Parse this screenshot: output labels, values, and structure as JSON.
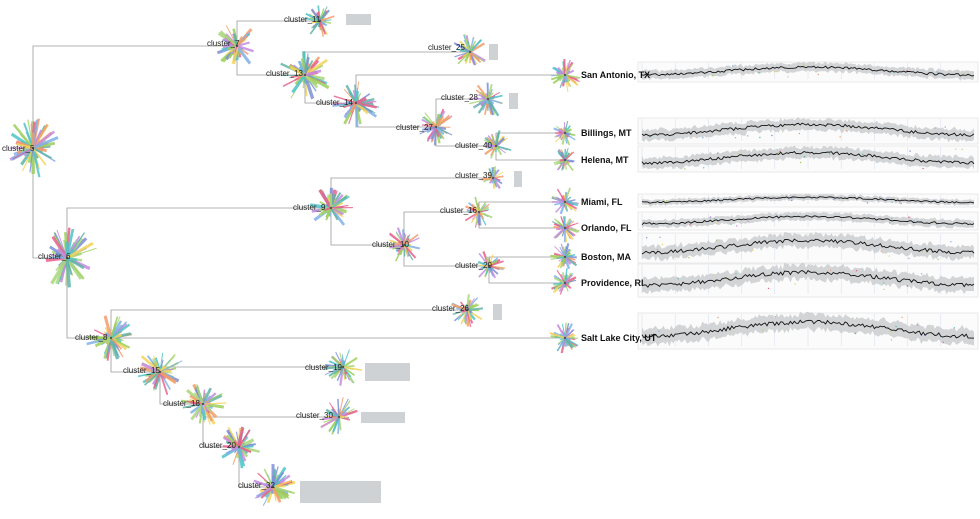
{
  "diagram": {
    "type": "dendrogram",
    "clusters": [
      {
        "id": "cluster_5",
        "label": "cluster_5"
      },
      {
        "id": "cluster_6",
        "label": "cluster_6"
      },
      {
        "id": "cluster_7",
        "label": "cluster_7"
      },
      {
        "id": "cluster_8",
        "label": "cluster_8"
      },
      {
        "id": "cluster_9",
        "label": "cluster_9"
      },
      {
        "id": "cluster_10",
        "label": "cluster_10"
      },
      {
        "id": "cluster_11",
        "label": "cluster_11"
      },
      {
        "id": "cluster_13",
        "label": "cluster_13"
      },
      {
        "id": "cluster_14",
        "label": "cluster_14"
      },
      {
        "id": "cluster_15",
        "label": "cluster_15"
      },
      {
        "id": "cluster_16",
        "label": "cluster_16"
      },
      {
        "id": "cluster_18",
        "label": "cluster_18"
      },
      {
        "id": "cluster_19",
        "label": "cluster_19"
      },
      {
        "id": "cluster_20",
        "label": "cluster_20"
      },
      {
        "id": "cluster_25",
        "label": "cluster_25"
      },
      {
        "id": "cluster_26",
        "label": "cluster_26"
      },
      {
        "id": "cluster_27",
        "label": "cluster_27"
      },
      {
        "id": "cluster_28",
        "label": "cluster_28"
      },
      {
        "id": "cluster_29",
        "label": "cluster_29"
      },
      {
        "id": "cluster_30",
        "label": "cluster_30"
      },
      {
        "id": "cluster_32",
        "label": "cluster_32"
      },
      {
        "id": "cluster_39",
        "label": "cluster_39"
      },
      {
        "id": "cluster_40",
        "label": "cluster_40"
      }
    ],
    "leaves": [
      {
        "id": "san_antonio",
        "label": "San Antonio, TX"
      },
      {
        "id": "billings",
        "label": "Billings, MT"
      },
      {
        "id": "helena",
        "label": "Helena, MT"
      },
      {
        "id": "miami",
        "label": "Miami, FL"
      },
      {
        "id": "orlando",
        "label": "Orlando, FL"
      },
      {
        "id": "boston",
        "label": "Boston, MA"
      },
      {
        "id": "providence",
        "label": "Providence, RI"
      },
      {
        "id": "salt_lake_city",
        "label": "Salt Lake City, UT"
      }
    ],
    "edges": [
      [
        "cluster_5",
        "cluster_7"
      ],
      [
        "cluster_5",
        "cluster_6"
      ],
      [
        "cluster_7",
        "cluster_11"
      ],
      [
        "cluster_7",
        "cluster_13"
      ],
      [
        "cluster_13",
        "cluster_25"
      ],
      [
        "cluster_13",
        "cluster_14"
      ],
      [
        "cluster_14",
        "san_antonio"
      ],
      [
        "cluster_14",
        "cluster_27"
      ],
      [
        "cluster_27",
        "cluster_28"
      ],
      [
        "cluster_27",
        "cluster_40"
      ],
      [
        "cluster_40",
        "billings"
      ],
      [
        "cluster_40",
        "helena"
      ],
      [
        "cluster_6",
        "cluster_9"
      ],
      [
        "cluster_6",
        "cluster_8"
      ],
      [
        "cluster_9",
        "cluster_39"
      ],
      [
        "cluster_9",
        "cluster_10"
      ],
      [
        "cluster_10",
        "cluster_16"
      ],
      [
        "cluster_10",
        "cluster_29"
      ],
      [
        "cluster_16",
        "miami"
      ],
      [
        "cluster_16",
        "orlando"
      ],
      [
        "cluster_29",
        "boston"
      ],
      [
        "cluster_29",
        "providence"
      ],
      [
        "cluster_8",
        "cluster_26"
      ],
      [
        "cluster_8",
        "salt_lake_city"
      ],
      [
        "cluster_8",
        "cluster_15"
      ],
      [
        "cluster_15",
        "cluster_19"
      ],
      [
        "cluster_15",
        "cluster_18"
      ],
      [
        "cluster_18",
        "cluster_30"
      ],
      [
        "cluster_18",
        "cluster_20"
      ],
      [
        "cluster_20",
        "cluster_32"
      ]
    ],
    "colors": {
      "edge": "#9a9a9a",
      "placeholder_box": "#cfd2d4",
      "series_line": "#111111",
      "series_band": "#c4c7c9",
      "ray_palette": [
        "#4fc3c7",
        "#7b8fd6",
        "#f2d35a",
        "#a9d67a",
        "#c58be0",
        "#f29c6b",
        "#7fb0e8",
        "#e85f8a",
        "#9ccf5d",
        "#5fb3a8"
      ]
    }
  }
}
